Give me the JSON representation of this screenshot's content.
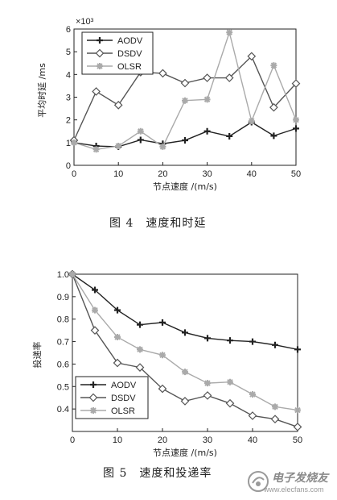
{
  "chart_data": [
    {
      "type": "line",
      "x": [
        0,
        5,
        10,
        15,
        20,
        25,
        30,
        35,
        40,
        45,
        50
      ],
      "series": [
        {
          "name": "AODV",
          "marker": "plus",
          "color": "#222222",
          "values": [
            1.0,
            0.85,
            0.82,
            1.12,
            0.95,
            1.1,
            1.5,
            1.28,
            1.9,
            1.3,
            1.62
          ]
        },
        {
          "name": "DSDV",
          "marker": "diamond",
          "color": "#555555",
          "values": [
            1.1,
            3.25,
            2.65,
            4.1,
            4.05,
            3.62,
            3.85,
            3.85,
            4.8,
            2.55,
            3.6
          ]
        },
        {
          "name": "OLSR",
          "marker": "star",
          "color": "#aaaaaa",
          "values": [
            1.0,
            0.7,
            0.85,
            1.5,
            0.82,
            2.85,
            2.9,
            5.85,
            1.95,
            4.4,
            2.0
          ]
        }
      ],
      "xlabel": "节点速度 /(m/s)",
      "ylabel": "平均时延 /ms",
      "exponent_label": "×10³",
      "xlim": [
        0,
        50
      ],
      "ylim": [
        0,
        6
      ],
      "xticks": [
        "0",
        "10",
        "20",
        "30",
        "40",
        "50"
      ],
      "yticks": [
        "0",
        "1",
        "2",
        "3",
        "4",
        "5",
        "6"
      ],
      "legend": "top-left",
      "grid": false
    },
    {
      "type": "line",
      "x": [
        0,
        5,
        10,
        15,
        20,
        25,
        30,
        35,
        40,
        45,
        50
      ],
      "series": [
        {
          "name": "AODV",
          "marker": "plus",
          "color": "#222222",
          "values": [
            1.0,
            0.93,
            0.84,
            0.775,
            0.785,
            0.74,
            0.715,
            0.705,
            0.7,
            0.685,
            0.665
          ]
        },
        {
          "name": "DSDV",
          "marker": "diamond",
          "color": "#555555",
          "values": [
            1.0,
            0.75,
            0.605,
            0.585,
            0.49,
            0.435,
            0.46,
            0.425,
            0.37,
            0.355,
            0.32
          ]
        },
        {
          "name": "OLSR",
          "marker": "star",
          "color": "#aaaaaa",
          "values": [
            1.0,
            0.84,
            0.72,
            0.665,
            0.64,
            0.565,
            0.515,
            0.52,
            0.465,
            0.41,
            0.395
          ]
        }
      ],
      "xlabel": "节点速度 /(m/s)",
      "ylabel": "投递率",
      "xlim": [
        0,
        50
      ],
      "ylim": [
        0.3,
        1.0
      ],
      "xticks": [
        "0",
        "10",
        "20",
        "30",
        "40",
        "50"
      ],
      "yticks": [
        "0.4",
        "0.5",
        "0.6",
        "0.7",
        "0.8",
        "0.9",
        "1.0"
      ],
      "legend": "bottom-left",
      "grid": false
    }
  ],
  "captions": {
    "fig4": "图 4　速度和时延",
    "fig5": "图 5　速度和投递率"
  },
  "watermark": {
    "title": "电子发烧友",
    "url": "www.elecfans.com"
  }
}
